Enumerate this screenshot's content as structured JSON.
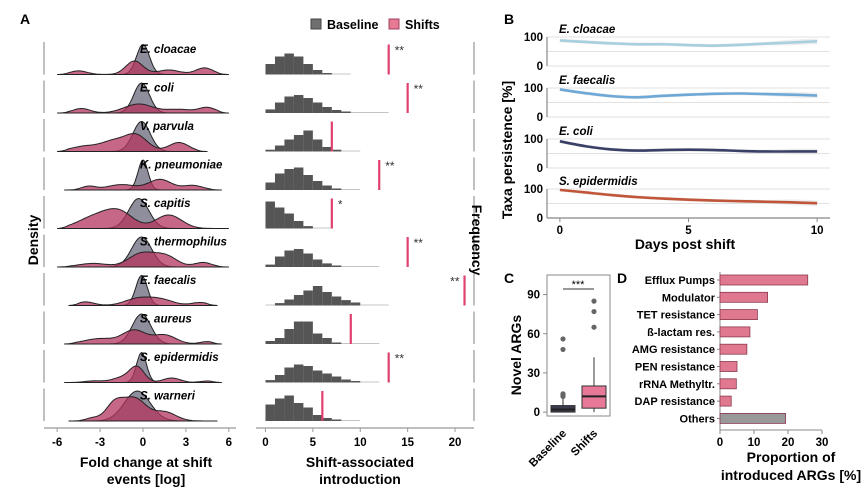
{
  "panel_labels": {
    "a": "A",
    "b": "B",
    "c": "C",
    "d": "D"
  },
  "colors": {
    "baseline": "#6f6f7f",
    "baseline_fill": "#7a7a8c",
    "shifts": "#e66a8a",
    "shifts_dark": "#b3345f",
    "hist": "#555555",
    "vline": "#e0406e",
    "others_bar": "#999999",
    "box_baseline": "#3b3b4f",
    "box_shifts": "#e87897",
    "line_cloacae": "#a8cfe0",
    "line_faecalis": "#6ea8d6",
    "line_coli": "#3a3f66",
    "line_epidermidis": "#c0553a"
  },
  "chart_data": [
    {
      "id": "A_density",
      "type": "area",
      "title": "",
      "xlabel": "Fold change at shift events [log]",
      "xlabel_lines": [
        "Fold change at shift",
        "events [log]"
      ],
      "ylabel": "Density",
      "xlim": [
        -6.5,
        6.5
      ],
      "x_ticks": [
        -6,
        -3,
        0,
        3,
        6
      ],
      "x_tick_labels": [
        "-6",
        "-3",
        "0",
        "3",
        "6"
      ],
      "legend": [
        {
          "name": "Baseline"
        },
        {
          "name": "Shifts"
        }
      ],
      "legend_position": "top",
      "taxa": [
        {
          "name": "E. cloacae",
          "baseline_peak": 0.0,
          "baseline_sd": 0.45,
          "shift_modes": [
            [
              -4.5,
              0.6,
              0.12
            ],
            [
              -0.6,
              0.6,
              0.45
            ],
            [
              1.8,
              0.8,
              0.15
            ],
            [
              4.3,
              0.6,
              0.22
            ]
          ],
          "range": [
            -6,
            6
          ]
        },
        {
          "name": "E. coli",
          "baseline_peak": -0.1,
          "baseline_sd": 0.55,
          "shift_modes": [
            [
              -4.3,
              0.6,
              0.15
            ],
            [
              -0.3,
              1.0,
              0.3
            ],
            [
              2.5,
              0.9,
              0.12
            ],
            [
              4.5,
              0.6,
              0.18
            ]
          ],
          "range": [
            -6,
            6
          ]
        },
        {
          "name": "V. parvula",
          "baseline_peak": -0.1,
          "baseline_sd": 0.6,
          "shift_modes": [
            [
              -4,
              1,
              0.18
            ],
            [
              -2.1,
              0.8,
              0.3
            ],
            [
              -0.5,
              0.8,
              0.55
            ],
            [
              2.5,
              0.7,
              0.3
            ]
          ],
          "range": [
            -6,
            4.5
          ]
        },
        {
          "name": "K. pneumoniae",
          "baseline_peak": 0.0,
          "baseline_sd": 0.35,
          "shift_modes": [
            [
              -3.8,
              0.5,
              0.12
            ],
            [
              -1.5,
              1,
              0.18
            ],
            [
              1.2,
              0.8,
              0.35
            ],
            [
              3.5,
              0.7,
              0.15
            ]
          ],
          "range": [
            -5.5,
            5.5
          ]
        },
        {
          "name": "S. capitis",
          "baseline_peak": -0.3,
          "baseline_sd": 0.7,
          "shift_modes": [
            [
              -3.5,
              1.1,
              0.35
            ],
            [
              -1.7,
              1,
              0.55
            ],
            [
              1.8,
              0.9,
              0.45
            ]
          ],
          "range": [
            -6,
            6
          ]
        },
        {
          "name": "S. thermophilus",
          "baseline_peak": -0.1,
          "baseline_sd": 0.7,
          "shift_modes": [
            [
              -3.5,
              1,
              0.12
            ],
            [
              -0.1,
              0.9,
              0.45
            ],
            [
              1.6,
              0.8,
              0.35
            ],
            [
              4.2,
              0.6,
              0.15
            ]
          ],
          "range": [
            -6,
            6
          ]
        },
        {
          "name": "E. faecalis",
          "baseline_peak": -0.1,
          "baseline_sd": 0.4,
          "shift_modes": [
            [
              -4,
              0.6,
              0.12
            ],
            [
              -0.4,
              0.9,
              0.22
            ],
            [
              1.2,
              0.9,
              0.2
            ],
            [
              4,
              0.6,
              0.1
            ]
          ],
          "range": [
            -5.2,
            5.2
          ]
        },
        {
          "name": "S. aureus",
          "baseline_peak": -0.1,
          "baseline_sd": 0.65,
          "shift_modes": [
            [
              -3,
              1.1,
              0.18
            ],
            [
              -0.6,
              0.8,
              0.45
            ],
            [
              1.5,
              0.8,
              0.3
            ],
            [
              4.5,
              0.5,
              0.08
            ]
          ],
          "range": [
            -5.5,
            5.5
          ]
        },
        {
          "name": "S. epidermidis",
          "baseline_peak": -0.1,
          "baseline_sd": 0.35,
          "shift_modes": [
            [
              -3.5,
              0.6,
              0.05
            ],
            [
              -1.3,
              0.8,
              0.18
            ],
            [
              -0.4,
              0.5,
              0.45
            ],
            [
              2,
              0.6,
              0.15
            ],
            [
              4.5,
              0.5,
              0.05
            ]
          ],
          "range": [
            -5.5,
            5.5
          ]
        },
        {
          "name": "S. warneri",
          "baseline_peak": -0.4,
          "baseline_sd": 0.9,
          "shift_modes": [
            [
              -3.5,
              0.5,
              0.1
            ],
            [
              -2,
              0.6,
              0.55
            ],
            [
              -0.6,
              0.8,
              0.75
            ],
            [
              1.5,
              0.8,
              0.3
            ]
          ],
          "range": [
            -5.2,
            5.2
          ]
        }
      ]
    },
    {
      "id": "A_histogram",
      "type": "bar",
      "xlabel": "Shift-associated introduction",
      "xlabel_lines": [
        "Shift-associated",
        "introduction"
      ],
      "ylabel": "Frequency",
      "xlim": [
        -1,
        22
      ],
      "x_ticks": [
        0,
        5,
        10,
        15,
        20
      ],
      "x_tick_labels": [
        "0",
        "5",
        "10",
        "15",
        "20"
      ],
      "taxa": [
        {
          "name": "E. cloacae",
          "bins": [
            0.35,
            0.6,
            0.7,
            0.6,
            0.35,
            0.15,
            0.05,
            0.02,
            0.01
          ],
          "observed": 13,
          "significance": "**"
        },
        {
          "name": "E. coli",
          "bins": [
            0.12,
            0.35,
            0.55,
            0.6,
            0.5,
            0.35,
            0.2,
            0.1,
            0.05,
            0.02,
            0.02,
            0.01,
            0.01
          ],
          "observed": 15,
          "significance": "**"
        },
        {
          "name": "V. parvula",
          "bins": [
            0.06,
            0.2,
            0.4,
            0.55,
            0.7,
            0.4,
            0.15,
            0.06,
            0.02,
            0.01
          ],
          "observed": 7,
          "significance": ""
        },
        {
          "name": "K. pneumoniae",
          "bins": [
            0.25,
            0.55,
            0.7,
            0.75,
            0.5,
            0.3,
            0.15,
            0.05,
            0.02,
            0.01
          ],
          "observed": 12,
          "significance": "**"
        },
        {
          "name": "S. capitis",
          "bins": [
            0.9,
            0.7,
            0.5,
            0.25,
            0.08,
            0.03,
            0.01
          ],
          "observed": 7,
          "significance": "*"
        },
        {
          "name": "S. thermophilus",
          "bins": [
            0.08,
            0.35,
            0.55,
            0.6,
            0.45,
            0.25,
            0.12,
            0.05,
            0.02,
            0.01,
            0.01,
            0.01
          ],
          "observed": 15,
          "significance": "**"
        },
        {
          "name": "E. faecalis",
          "bins": [
            0.02,
            0.08,
            0.2,
            0.35,
            0.5,
            0.65,
            0.45,
            0.3,
            0.18,
            0.1,
            0.03,
            0.01,
            0.01
          ],
          "observed": 21,
          "significance": "**"
        },
        {
          "name": "S. aureus",
          "bins": [
            0.1,
            0.2,
            0.5,
            0.75,
            0.75,
            0.35,
            0.2,
            0.05,
            0.02,
            0.01,
            0.01,
            0.01
          ],
          "observed": 9,
          "significance": ""
        },
        {
          "name": "S. epidermidis",
          "bins": [
            0.08,
            0.25,
            0.5,
            0.6,
            0.55,
            0.4,
            0.3,
            0.2,
            0.1,
            0.05,
            0.03,
            0.02
          ],
          "observed": 13,
          "significance": "**"
        },
        {
          "name": "S. warneri",
          "bins": [
            0.55,
            0.75,
            0.85,
            0.6,
            0.45,
            0.2,
            0.1,
            0.05,
            0.03,
            0.02
          ],
          "observed": 6,
          "significance": ""
        }
      ]
    },
    {
      "id": "B_persistence",
      "type": "line",
      "xlabel": "Days post shift",
      "ylabel": "Taxa persistence [%]",
      "xlim": [
        -0.5,
        10.5
      ],
      "ylim": [
        0,
        100
      ],
      "x_ticks": [
        0,
        5,
        10
      ],
      "y_ticks": [
        0,
        100
      ],
      "series": [
        {
          "name": "E. cloacae",
          "x": [
            0,
            1,
            2,
            3,
            4,
            5,
            6,
            7,
            8,
            9,
            10
          ],
          "values": [
            88,
            83,
            78,
            75,
            75,
            72,
            70,
            73,
            77,
            81,
            85
          ]
        },
        {
          "name": "E. faecalis",
          "x": [
            0,
            1,
            2,
            3,
            4,
            5,
            6,
            7,
            8,
            9,
            10
          ],
          "values": [
            95,
            82,
            72,
            68,
            73,
            77,
            80,
            81,
            79,
            77,
            74
          ]
        },
        {
          "name": "E. coli",
          "x": [
            0,
            1,
            2,
            3,
            4,
            5,
            6,
            7,
            8,
            9,
            10
          ],
          "values": [
            92,
            75,
            64,
            60,
            62,
            63,
            62,
            59,
            57,
            57,
            57
          ]
        },
        {
          "name": "S. epidermidis",
          "x": [
            0,
            1,
            2,
            3,
            4,
            5,
            6,
            7,
            8,
            9,
            10
          ],
          "values": [
            97,
            88,
            79,
            72,
            67,
            63,
            60,
            58,
            56,
            54,
            51
          ]
        }
      ]
    },
    {
      "id": "C_boxplot",
      "type": "box",
      "ylabel": "Novel ARGs",
      "ylim": [
        -3,
        105
      ],
      "y_ticks": [
        0,
        30,
        60,
        90
      ],
      "categories": [
        "Baseline",
        "Shifts"
      ],
      "significance": "***",
      "series": [
        {
          "name": "Baseline",
          "q1": 0,
          "median": 2,
          "q3": 5,
          "whisker_low": 0,
          "whisker_high": 11,
          "outliers": [
            12,
            13,
            14,
            48,
            56
          ]
        },
        {
          "name": "Shifts",
          "q1": 3,
          "median": 12,
          "q3": 20,
          "whisker_low": 0,
          "whisker_high": 42,
          "outliers": [
            65,
            77,
            85
          ]
        }
      ]
    },
    {
      "id": "D_bars",
      "type": "bar",
      "orientation": "horizontal",
      "xlabel": "Proportion of introduced ARGs [%]",
      "xlabel_lines": [
        "Proportion of",
        "introduced ARGs [%]"
      ],
      "xlim": [
        0,
        30
      ],
      "x_ticks": [
        0,
        10,
        20,
        30
      ],
      "categories": [
        "Efflux Pumps",
        "Modulator",
        "TET resistance",
        "ß-lactam res.",
        "AMG resistance",
        "PEN resistance",
        "rRNA Methyltr.",
        "DAP resistance",
        "Others"
      ],
      "values": [
        25.8,
        14,
        11,
        8.8,
        7.9,
        5,
        4.8,
        3.3,
        19.3
      ]
    }
  ]
}
